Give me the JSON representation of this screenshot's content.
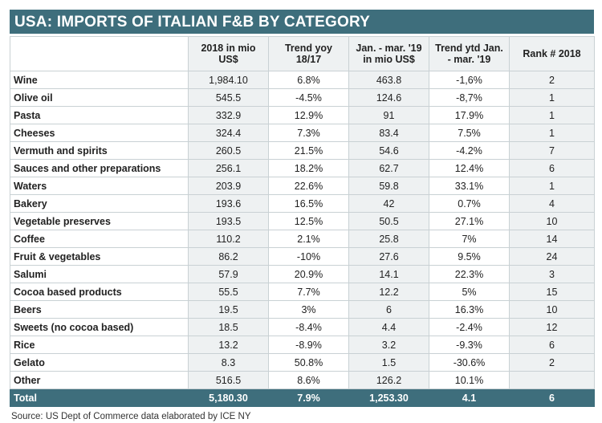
{
  "title": "USA: IMPORTS OF ITALIAN F&B BY CATEGORY",
  "table": {
    "header": [
      "2018 in mio US$",
      "Trend yoy 18/17",
      "Jan. - mar. '19 in mio US$",
      "Trend ytd Jan. - mar. '19",
      "Rank # 2018"
    ],
    "rows": [
      [
        "Wine",
        "1,984.10",
        "6.8%",
        "463.8",
        "-1,6%",
        "2"
      ],
      [
        "Olive oil",
        "545.5",
        "-4.5%",
        "124.6",
        "-8,7%",
        "1"
      ],
      [
        "Pasta",
        "332.9",
        "12.9%",
        "91",
        "17.9%",
        "1"
      ],
      [
        "Cheeses",
        "324.4",
        "7.3%",
        "83.4",
        "7.5%",
        "1"
      ],
      [
        "Vermuth and spirits",
        "260.5",
        "21.5%",
        "54.6",
        "-4.2%",
        "7"
      ],
      [
        "Sauces and other preparations",
        "256.1",
        "18.2%",
        "62.7",
        "12.4%",
        "6"
      ],
      [
        "Waters",
        "203.9",
        "22.6%",
        "59.8",
        "33.1%",
        "1"
      ],
      [
        "Bakery",
        "193.6",
        "16.5%",
        "42",
        "0.7%",
        "4"
      ],
      [
        "Vegetable preserves",
        "193.5",
        "12.5%",
        "50.5",
        "27.1%",
        "10"
      ],
      [
        "Coffee",
        "110.2",
        "2.1%",
        "25.8",
        "7%",
        "14"
      ],
      [
        "Fruit & vegetables",
        "86.2",
        "-10%",
        "27.6",
        "9.5%",
        "24"
      ],
      [
        "Salumi",
        "57.9",
        "20.9%",
        "14.1",
        "22.3%",
        "3"
      ],
      [
        "Cocoa based products",
        "55.5",
        "7.7%",
        "12.2",
        "5%",
        "15"
      ],
      [
        "Beers",
        "19.5",
        "3%",
        "6",
        "16.3%",
        "10"
      ],
      [
        "Sweets (no cocoa based)",
        "18.5",
        "-8.4%",
        "4.4",
        "-2.4%",
        "12"
      ],
      [
        "Rice",
        "13.2",
        "-8.9%",
        "3.2",
        "-9.3%",
        "6"
      ],
      [
        "Gelato",
        "8.3",
        "50.8%",
        "1.5",
        "-30.6%",
        "2"
      ],
      [
        "Other",
        "516.5",
        "8.6%",
        "126.2",
        "10.1%"
      ]
    ],
    "total": [
      "Total",
      "5,180.30",
      "7.9%",
      "1,253.30",
      "4.1",
      "6"
    ]
  },
  "source": "Source: US Dept of Commerce data elaborated by ICE NY"
}
